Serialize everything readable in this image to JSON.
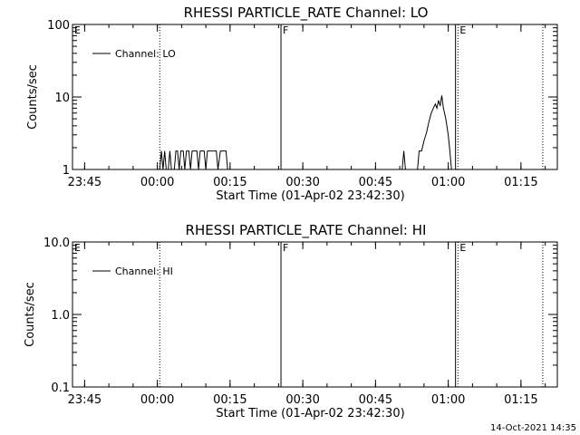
{
  "timestamp": "14-Oct-2021 14:35",
  "chart_data": [
    {
      "type": "line",
      "title": "RHESSI PARTICLE_RATE Channel: LO",
      "xlabel": "Start Time (01-Apr-02 23:42:30)",
      "ylabel": "Counts/sec",
      "y_scale": "log",
      "ylim": [
        1,
        100
      ],
      "ytick_labels": [
        "1",
        "10",
        "100"
      ],
      "xtick_labels": [
        "23:45",
        "00:00",
        "00:15",
        "00:30",
        "00:45",
        "01:00",
        "01:15"
      ],
      "legend": {
        "label": "Channel: LO",
        "placement": "top-left"
      },
      "segment_markers": [
        {
          "label": "E",
          "x": "23:42:30",
          "style": "none"
        },
        {
          "label": "",
          "x": "00:00:30",
          "style": "dotted"
        },
        {
          "label": "F",
          "x": "00:25:30",
          "style": "solid"
        },
        {
          "label": "",
          "x": "01:01:30",
          "style": "solid"
        },
        {
          "label": "E",
          "x": "01:02:00",
          "style": "dotted"
        },
        {
          "label": "",
          "x": "01:19:30",
          "style": "dotted"
        }
      ],
      "series": [
        {
          "name": "Channel: LO",
          "segments": [
            [
              [
                "00:00:30",
                1
              ],
              [
                "00:00:50",
                1.8
              ],
              [
                "00:01:10",
                1
              ],
              [
                "00:01:30",
                1.8
              ],
              [
                "00:01:50",
                1
              ],
              [
                "00:02:15",
                1
              ],
              [
                "00:02:35",
                1.8
              ],
              [
                "00:02:55",
                1
              ],
              [
                "00:03:30",
                1
              ],
              [
                "00:03:50",
                1.8
              ],
              [
                "00:04:10",
                1.8
              ],
              [
                "00:04:30",
                1
              ],
              [
                "00:04:50",
                1.8
              ],
              [
                "00:05:20",
                1.8
              ],
              [
                "00:05:40",
                1
              ],
              [
                "00:06:00",
                1.8
              ],
              [
                "00:06:30",
                1.8
              ],
              [
                "00:06:50",
                1
              ],
              [
                "00:07:10",
                1.8
              ],
              [
                "00:08:10",
                1.8
              ],
              [
                "00:08:30",
                1
              ],
              [
                "00:08:50",
                1.8
              ],
              [
                "00:09:40",
                1.8
              ],
              [
                "00:10:00",
                1
              ],
              [
                "00:10:20",
                1.8
              ],
              [
                "00:12:10",
                1.8
              ],
              [
                "00:12:30",
                1
              ],
              [
                "00:13:00",
                1.8
              ],
              [
                "00:14:10",
                1.8
              ],
              [
                "00:14:30",
                1
              ]
            ],
            [
              [
                "00:50:30",
                1
              ],
              [
                "00:50:50",
                1.8
              ],
              [
                "00:51:10",
                1
              ],
              [
                "00:53:40",
                1
              ],
              [
                "00:54:00",
                1.8
              ],
              [
                "00:54:30",
                1.8
              ],
              [
                "00:55:00",
                2.5
              ],
              [
                "00:55:30",
                3.2
              ],
              [
                "00:56:00",
                4.5
              ],
              [
                "00:56:30",
                6
              ],
              [
                "00:57:00",
                7.2
              ],
              [
                "00:57:20",
                8
              ],
              [
                "00:57:40",
                7
              ],
              [
                "00:58:00",
                9
              ],
              [
                "00:58:20",
                7.5
              ],
              [
                "00:58:40",
                10.5
              ],
              [
                "00:59:00",
                7
              ],
              [
                "00:59:30",
                5
              ],
              [
                "01:00:00",
                3
              ],
              [
                "01:00:20",
                1.8
              ],
              [
                "01:00:40",
                1
              ]
            ]
          ]
        }
      ]
    },
    {
      "type": "line",
      "title": "RHESSI PARTICLE_RATE Channel: HI",
      "xlabel": "Start Time (01-Apr-02 23:42:30)",
      "ylabel": "Counts/sec",
      "y_scale": "log",
      "ylim": [
        0.1,
        10
      ],
      "ytick_labels": [
        "0.1",
        "1.0",
        "10.0"
      ],
      "xtick_labels": [
        "23:45",
        "00:00",
        "00:15",
        "00:30",
        "00:45",
        "01:00",
        "01:15"
      ],
      "legend": {
        "label": "Channel: HI",
        "placement": "top-left"
      },
      "segment_markers": [
        {
          "label": "E",
          "x": "23:42:30",
          "style": "none"
        },
        {
          "label": "",
          "x": "00:00:30",
          "style": "dotted"
        },
        {
          "label": "F",
          "x": "00:25:30",
          "style": "solid"
        },
        {
          "label": "",
          "x": "01:01:30",
          "style": "solid"
        },
        {
          "label": "E",
          "x": "01:02:00",
          "style": "dotted"
        },
        {
          "label": "",
          "x": "01:19:30",
          "style": "dotted"
        }
      ],
      "series": [
        {
          "name": "Channel: HI",
          "segments": []
        }
      ]
    }
  ]
}
